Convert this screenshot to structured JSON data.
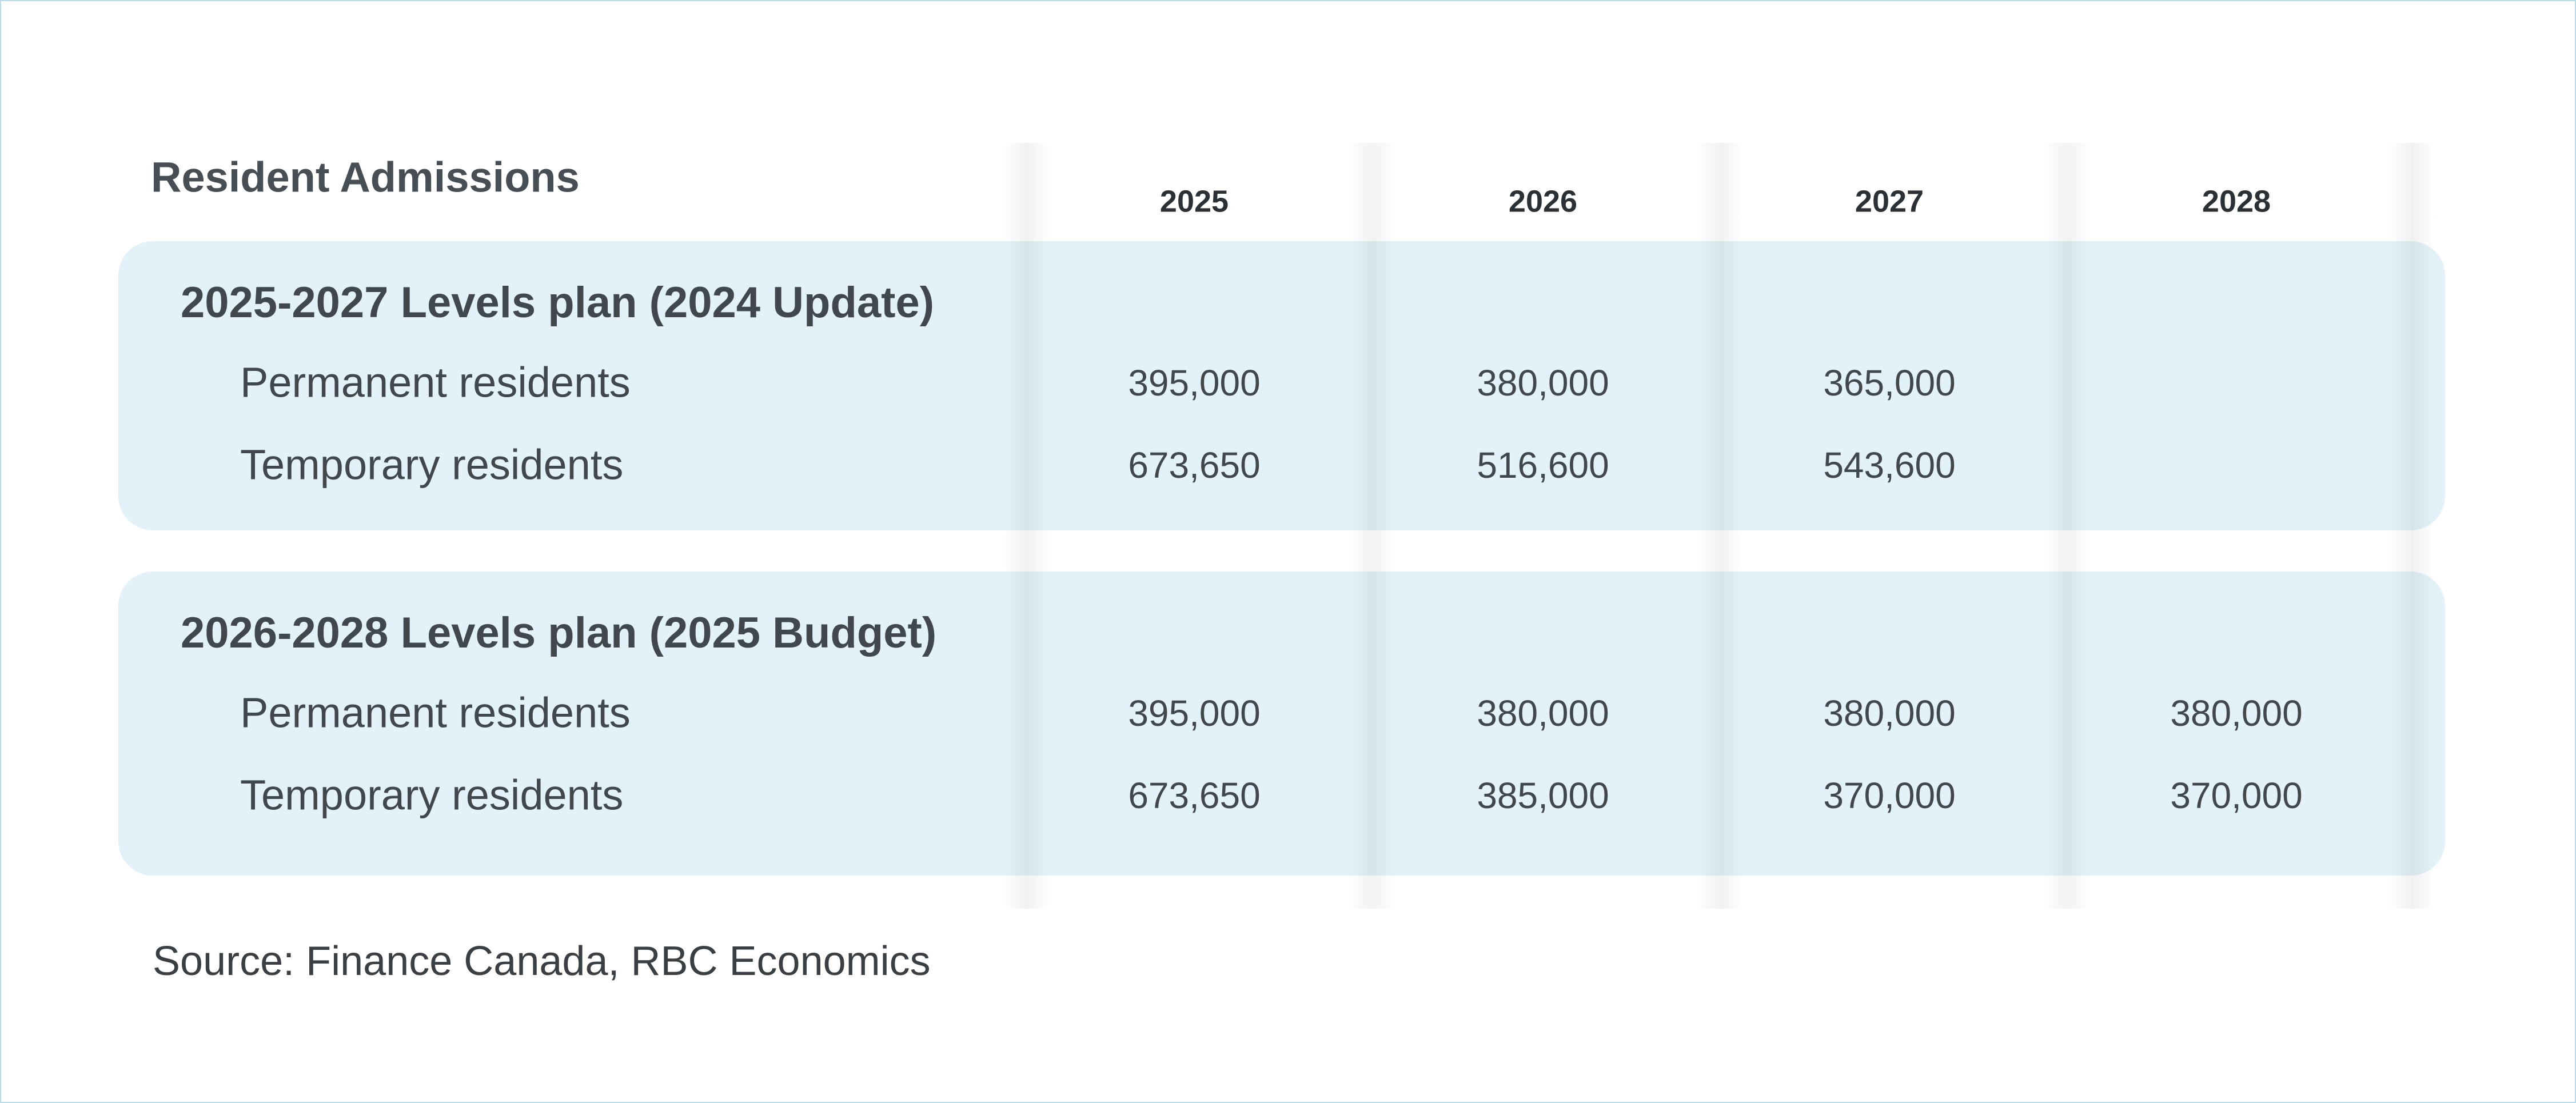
{
  "header": {
    "title": "Resident Admissions"
  },
  "table": {
    "columns": [
      "2025",
      "2026",
      "2027",
      "2028"
    ],
    "groups": [
      {
        "title": "2025-2027 Levels plan (2024 Update)",
        "rows": [
          {
            "label": "Permanent residents",
            "values": [
              "395,000",
              "380,000",
              "365,000",
              null
            ]
          },
          {
            "label": "Temporary residents",
            "values": [
              "673,650",
              "516,600",
              "543,600",
              null
            ]
          }
        ]
      },
      {
        "title": "2026-2028 Levels plan (2025 Budget)",
        "rows": [
          {
            "label": "Permanent residents",
            "values": [
              "395,000",
              "380,000",
              "380,000",
              "380,000"
            ]
          },
          {
            "label": "Temporary residents",
            "values": [
              "673,650",
              "385,000",
              "370,000",
              "370,000"
            ]
          }
        ]
      }
    ]
  },
  "footer": {
    "source": "Source: Finance Canada, RBC Economics"
  }
}
